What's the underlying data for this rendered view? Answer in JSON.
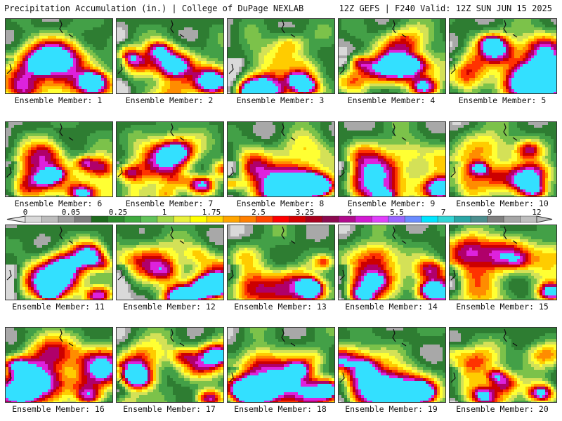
{
  "header": {
    "left": "Precipitation Accumulation (in.) | College of DuPage NEXLAB",
    "right": "12Z GEFS | F240 Valid: 12Z SUN JUN 15 2025"
  },
  "panels": [
    {
      "label": "Ensemble Member: 1"
    },
    {
      "label": "Ensemble Member: 2"
    },
    {
      "label": "Ensemble Member: 3"
    },
    {
      "label": "Ensemble Member: 4"
    },
    {
      "label": "Ensemble Member: 5"
    },
    {
      "label": "Ensemble Member: 6"
    },
    {
      "label": "Ensemble Member: 7"
    },
    {
      "label": "Ensemble Member: 8"
    },
    {
      "label": "Ensemble Member: 9"
    },
    {
      "label": "Ensemble Member: 10"
    },
    {
      "label": "Ensemble Member: 11"
    },
    {
      "label": "Ensemble Member: 12"
    },
    {
      "label": "Ensemble Member: 13"
    },
    {
      "label": "Ensemble Member: 14"
    },
    {
      "label": "Ensemble Member: 15"
    },
    {
      "label": "Ensemble Member: 16"
    },
    {
      "label": "Ensemble Member: 17"
    },
    {
      "label": "Ensemble Member: 18"
    },
    {
      "label": "Ensemble Member: 19"
    },
    {
      "label": "Ensemble Member: 20"
    }
  ],
  "colorbar": {
    "tick_labels": [
      "0",
      "0.05",
      "0.25",
      "1",
      "1.75",
      "2.5",
      "3.25",
      "4",
      "5.5",
      "7",
      "9",
      "12"
    ],
    "colors": [
      "#d9d9d9",
      "#bdbdbd",
      "#a0a0a0",
      "#7e7e7e",
      "#1e6b1e",
      "#2e8b2e",
      "#3faa3f",
      "#62c35a",
      "#a5d94a",
      "#e8f03c",
      "#ffff00",
      "#ffd700",
      "#ffa500",
      "#ff7f00",
      "#ff4500",
      "#ff0000",
      "#d40000",
      "#a8001e",
      "#8b0a50",
      "#b00b8c",
      "#d21ad2",
      "#e040fb",
      "#9966ff",
      "#6a8cff",
      "#00e5ff",
      "#33d6d6",
      "#2aa6a6",
      "#4d8f8f",
      "#808080",
      "#a6a6a6",
      "#bfbfbf"
    ]
  }
}
